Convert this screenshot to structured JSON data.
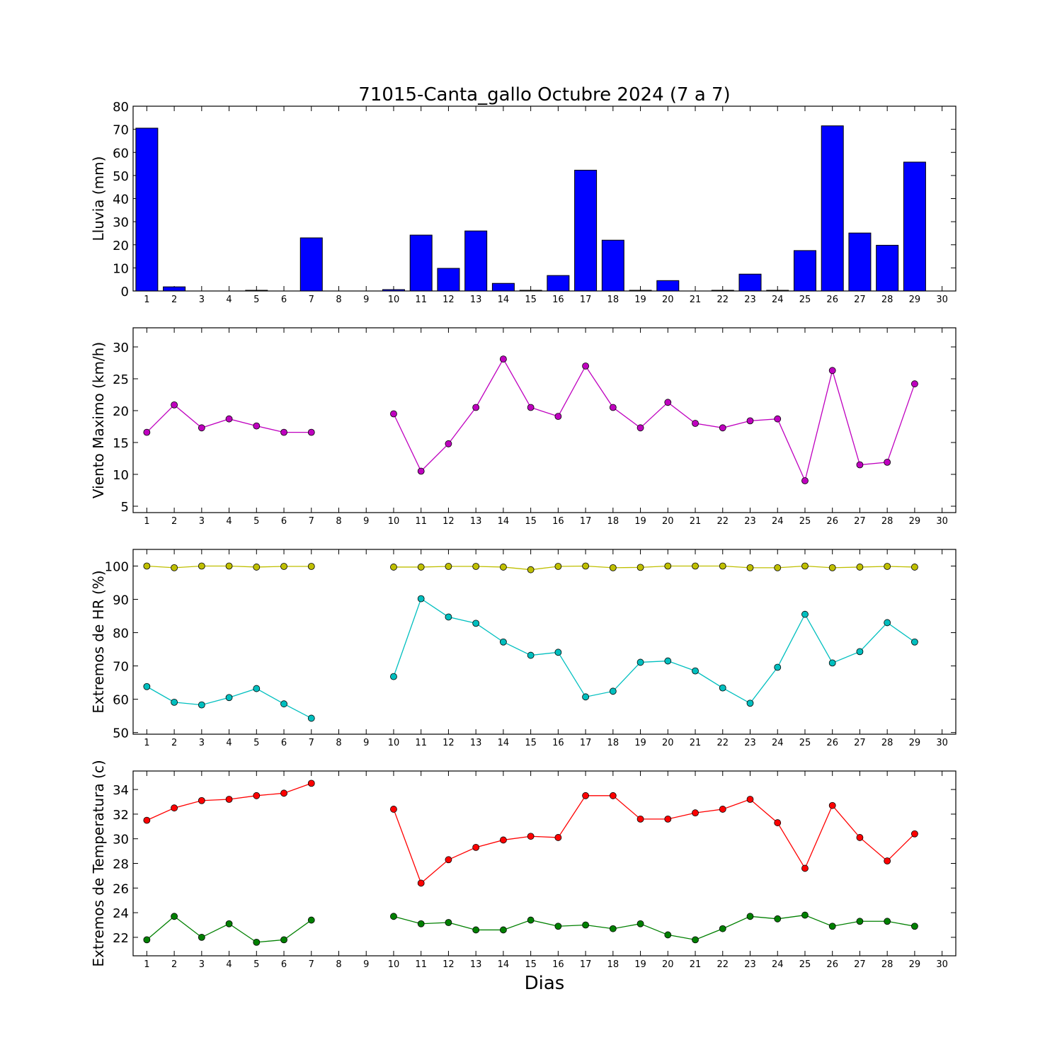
{
  "title": "71015-Canta_gallo Octubre 2024  (7 a 7)",
  "xlabel": "Dias",
  "colors": {
    "rain": "#0000ff",
    "wind": "#bf00bf",
    "hr_max": "#bfbf00",
    "hr_min": "#00bfbf",
    "t_max": "#ff0000",
    "t_min": "#008000"
  },
  "chart_data": [
    {
      "id": "rain",
      "type": "bar",
      "title": "71015-Canta_gallo Octubre 2024  (7 a 7)",
      "ylabel": "Lluvia (mm)",
      "xlabel": "",
      "ylim": [
        0,
        80
      ],
      "yticks": [
        0,
        10,
        20,
        30,
        40,
        50,
        60,
        70,
        80
      ],
      "xlim": [
        0.5,
        30.5
      ],
      "xticks": [
        1,
        2,
        3,
        4,
        5,
        6,
        7,
        8,
        9,
        10,
        11,
        12,
        13,
        14,
        15,
        16,
        17,
        18,
        19,
        20,
        21,
        22,
        23,
        24,
        25,
        26,
        27,
        28,
        29,
        30
      ],
      "x": [
        1,
        2,
        3,
        4,
        5,
        6,
        7,
        8,
        9,
        10,
        11,
        12,
        13,
        14,
        15,
        16,
        17,
        18,
        19,
        20,
        21,
        22,
        23,
        24,
        25,
        26,
        27,
        28,
        29
      ],
      "values": [
        70.5,
        1.8,
        0,
        0,
        0.3,
        0,
        23,
        0,
        0,
        0.6,
        24.2,
        9.8,
        26,
        3.3,
        0.3,
        6.7,
        52.3,
        22,
        0.3,
        4.5,
        0,
        0.3,
        7.3,
        0.3,
        17.5,
        71.5,
        25.1,
        19.8,
        55.8
      ],
      "grid": false
    },
    {
      "id": "wind",
      "type": "line",
      "ylabel": "Viento Maximo (km/h)",
      "xlabel": "",
      "ylim": [
        4,
        33
      ],
      "yticks": [
        5,
        10,
        15,
        20,
        25,
        30
      ],
      "xlim": [
        0.5,
        30.5
      ],
      "xticks": [
        1,
        2,
        3,
        4,
        5,
        6,
        7,
        8,
        9,
        10,
        11,
        12,
        13,
        14,
        15,
        16,
        17,
        18,
        19,
        20,
        21,
        22,
        23,
        24,
        25,
        26,
        27,
        28,
        29,
        30
      ],
      "series": [
        {
          "key": "wind",
          "x": [
            1,
            2,
            3,
            4,
            5,
            6,
            7,
            8,
            9,
            10,
            11,
            12,
            13,
            14,
            15,
            16,
            17,
            18,
            19,
            20,
            21,
            22,
            23,
            24,
            25,
            26,
            27,
            28,
            29
          ],
          "values": [
            16.6,
            20.9,
            17.3,
            18.7,
            17.6,
            16.6,
            16.6,
            null,
            null,
            19.5,
            10.5,
            14.8,
            20.5,
            28.1,
            20.5,
            19.1,
            27,
            20.5,
            17.3,
            21.3,
            18,
            17.3,
            18.4,
            18.7,
            9,
            26.3,
            11.5,
            11.9,
            24.2
          ]
        }
      ],
      "grid": false
    },
    {
      "id": "hr",
      "type": "line",
      "ylabel": "Extremos de HR (%)",
      "xlabel": "",
      "ylim": [
        49.5,
        105
      ],
      "yticks": [
        50,
        60,
        70,
        80,
        90,
        100
      ],
      "xlim": [
        0.5,
        30.5
      ],
      "xticks": [
        1,
        2,
        3,
        4,
        5,
        6,
        7,
        8,
        9,
        10,
        11,
        12,
        13,
        14,
        15,
        16,
        17,
        18,
        19,
        20,
        21,
        22,
        23,
        24,
        25,
        26,
        27,
        28,
        29,
        30
      ],
      "series": [
        {
          "key": "hr_max",
          "x": [
            1,
            2,
            3,
            4,
            5,
            6,
            7,
            8,
            9,
            10,
            11,
            12,
            13,
            14,
            15,
            16,
            17,
            18,
            19,
            20,
            21,
            22,
            23,
            24,
            25,
            26,
            27,
            28,
            29
          ],
          "values": [
            100,
            99.5,
            100,
            100,
            99.7,
            99.9,
            99.9,
            null,
            null,
            99.7,
            99.7,
            99.9,
            99.9,
            99.7,
            98.9,
            99.9,
            100,
            99.5,
            99.6,
            100,
            100,
            100,
            99.5,
            99.5,
            100,
            99.5,
            99.7,
            99.9,
            99.7
          ]
        },
        {
          "key": "hr_min",
          "x": [
            1,
            2,
            3,
            4,
            5,
            6,
            7,
            8,
            9,
            10,
            11,
            12,
            13,
            14,
            15,
            16,
            17,
            18,
            19,
            20,
            21,
            22,
            23,
            24,
            25,
            26,
            27,
            28,
            29
          ],
          "values": [
            63.8,
            59.1,
            58.3,
            60.5,
            63.2,
            58.6,
            54.3,
            null,
            null,
            66.8,
            90.2,
            84.7,
            82.8,
            77.2,
            73.2,
            74.1,
            60.7,
            62.4,
            71.1,
            71.5,
            68.5,
            63.4,
            58.8,
            69.6,
            85.5,
            70.9,
            74.3,
            83,
            77.2
          ]
        }
      ],
      "grid": false
    },
    {
      "id": "temp",
      "type": "line",
      "ylabel": "Extremos de Temperatura (c)",
      "xlabel": "Dias",
      "ylim": [
        20.5,
        35.5
      ],
      "yticks": [
        22,
        24,
        26,
        28,
        30,
        32,
        34
      ],
      "xlim": [
        0.5,
        30.5
      ],
      "xticks": [
        1,
        2,
        3,
        4,
        5,
        6,
        7,
        8,
        9,
        10,
        11,
        12,
        13,
        14,
        15,
        16,
        17,
        18,
        19,
        20,
        21,
        22,
        23,
        24,
        25,
        26,
        27,
        28,
        29,
        30
      ],
      "series": [
        {
          "key": "t_max",
          "x": [
            1,
            2,
            3,
            4,
            5,
            6,
            7,
            8,
            9,
            10,
            11,
            12,
            13,
            14,
            15,
            16,
            17,
            18,
            19,
            20,
            21,
            22,
            23,
            24,
            25,
            26,
            27,
            28,
            29
          ],
          "values": [
            31.5,
            32.5,
            33.1,
            33.2,
            33.5,
            33.7,
            34.5,
            null,
            null,
            32.4,
            26.4,
            28.3,
            29.3,
            29.9,
            30.2,
            30.1,
            33.5,
            33.5,
            31.6,
            31.6,
            32.1,
            32.4,
            33.2,
            31.3,
            27.6,
            32.7,
            30.1,
            28.2,
            30.4
          ]
        },
        {
          "key": "t_min",
          "x": [
            1,
            2,
            3,
            4,
            5,
            6,
            7,
            8,
            9,
            10,
            11,
            12,
            13,
            14,
            15,
            16,
            17,
            18,
            19,
            20,
            21,
            22,
            23,
            24,
            25,
            26,
            27,
            28,
            29
          ],
          "values": [
            21.8,
            23.7,
            22,
            23.1,
            21.6,
            21.8,
            23.4,
            null,
            null,
            23.7,
            23.1,
            23.2,
            22.6,
            22.6,
            23.4,
            22.9,
            23,
            22.7,
            23.1,
            22.2,
            21.8,
            22.7,
            23.7,
            23.5,
            23.8,
            22.9,
            23.3,
            23.3,
            22.9
          ]
        }
      ],
      "grid": false
    }
  ]
}
